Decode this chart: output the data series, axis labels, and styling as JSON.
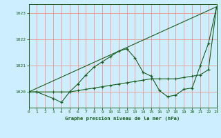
{
  "title": "Graphe pression niveau de la mer (hPa)",
  "background_color": "#cceeff",
  "grid_color": "#e8a0a0",
  "line_color": "#1a5c1a",
  "xlim": [
    0,
    23
  ],
  "ylim": [
    1019.4,
    1023.35
  ],
  "yticks": [
    1020,
    1021,
    1022,
    1023
  ],
  "xticks": [
    0,
    1,
    2,
    3,
    4,
    5,
    6,
    7,
    8,
    9,
    10,
    11,
    12,
    13,
    14,
    15,
    16,
    17,
    18,
    19,
    20,
    21,
    22,
    23
  ],
  "series1_x": [
    0,
    1,
    3,
    4,
    5,
    6,
    7,
    8,
    9,
    10,
    11,
    12,
    13,
    14,
    15,
    16,
    17,
    18,
    19,
    20,
    21,
    22,
    23
  ],
  "series1_y": [
    1020.0,
    1020.0,
    1019.75,
    1019.6,
    1020.0,
    1020.3,
    1020.65,
    1020.95,
    1021.15,
    1021.35,
    1021.55,
    1021.65,
    1021.3,
    1020.75,
    1020.6,
    1020.05,
    1019.82,
    1019.88,
    1020.1,
    1020.15,
    1021.0,
    1021.85,
    1023.25
  ],
  "series2_x": [
    0,
    23
  ],
  "series2_y": [
    1020.0,
    1023.25
  ],
  "series3_x": [
    0,
    1,
    3,
    4,
    5,
    6,
    7,
    8,
    9,
    10,
    11,
    12,
    13,
    14,
    15,
    16,
    17,
    18,
    19,
    20,
    21,
    22,
    23
  ],
  "series3_y": [
    1020.0,
    1020.0,
    1020.0,
    1020.0,
    1020.0,
    1020.05,
    1020.1,
    1020.15,
    1020.2,
    1020.25,
    1020.3,
    1020.35,
    1020.4,
    1020.45,
    1020.5,
    1020.5,
    1020.5,
    1020.5,
    1020.55,
    1020.6,
    1020.65,
    1020.85,
    1023.25
  ]
}
